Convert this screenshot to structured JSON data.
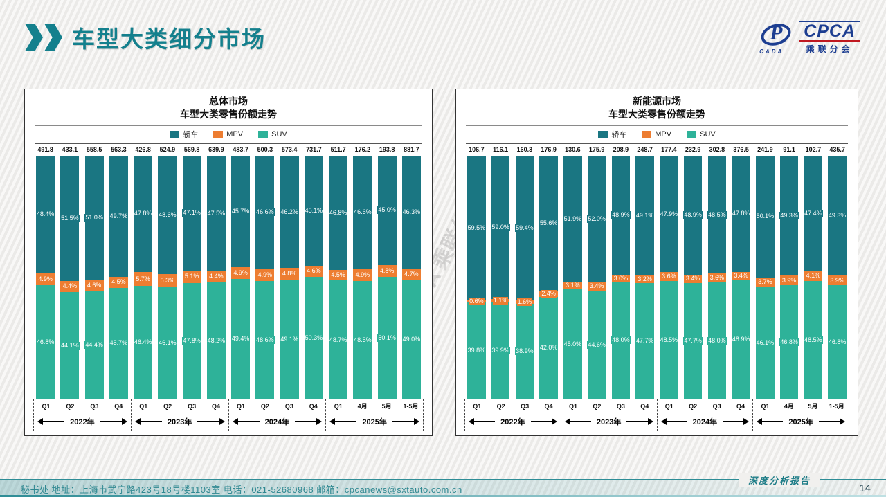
{
  "page": {
    "title": "车型大类细分市场",
    "page_number": "14",
    "report_label": "深度分析报告",
    "watermark": "CPCA 乘联分会",
    "footer_text": "秘书处   地址：上海市武宁路423号18号楼1103室  电话：021-52680968   邮箱：cpcanews@sxtauto.com.cn",
    "logo": {
      "brand": "CPCA",
      "sub": "乘联分会",
      "emblem": "CADA",
      "emblem_glyph": "P"
    }
  },
  "legend": [
    "轿车",
    "MPV",
    "SUV"
  ],
  "colors": {
    "sedan": "#1a7682",
    "mpv": "#ed7d31",
    "suv": "#2eb299",
    "accent": "#14808d"
  },
  "axis": {
    "quarters": [
      "Q1",
      "Q2",
      "Q3",
      "Q4",
      "Q1",
      "Q2",
      "Q3",
      "Q4",
      "Q1",
      "Q2",
      "Q3",
      "Q4",
      "Q1",
      "4月",
      "5月",
      "1-5月"
    ],
    "year_groups": [
      "2022年",
      "2023年",
      "2024年",
      "2025年"
    ]
  },
  "chart_data": [
    {
      "type": "bar",
      "stacked": true,
      "unit": "%",
      "ylim": [
        0,
        100
      ],
      "legend_position": "top",
      "title": "总体市场",
      "subtitle": "车型大类零售份额走势",
      "categories": [
        "Q1",
        "Q2",
        "Q3",
        "Q4",
        "Q1",
        "Q2",
        "Q3",
        "Q4",
        "Q1",
        "Q2",
        "Q3",
        "Q4",
        "Q1",
        "4月",
        "5月",
        "1-5月"
      ],
      "year_groups": [
        "2022年",
        "2023年",
        "2024年",
        "2025年"
      ],
      "totals": [
        491.8,
        433.1,
        558.5,
        563.3,
        426.8,
        524.9,
        569.8,
        639.9,
        483.7,
        500.3,
        573.4,
        731.7,
        511.7,
        176.2,
        193.8,
        881.7
      ],
      "series": [
        {
          "name": "轿车",
          "values": [
            48.4,
            51.5,
            51.0,
            49.7,
            47.8,
            48.6,
            47.1,
            47.5,
            45.7,
            46.6,
            46.2,
            45.1,
            46.8,
            46.6,
            45.0,
            46.3
          ]
        },
        {
          "name": "MPV",
          "values": [
            4.9,
            4.4,
            4.6,
            4.5,
            5.7,
            5.3,
            5.1,
            4.4,
            4.9,
            4.9,
            4.8,
            4.6,
            4.5,
            4.9,
            4.8,
            4.7
          ]
        },
        {
          "name": "SUV",
          "values": [
            46.8,
            44.1,
            44.4,
            45.7,
            46.4,
            46.1,
            47.8,
            48.2,
            49.4,
            48.6,
            49.1,
            50.3,
            48.7,
            48.5,
            50.1,
            49.0
          ]
        }
      ]
    },
    {
      "type": "bar",
      "stacked": true,
      "unit": "%",
      "ylim": [
        0,
        100
      ],
      "legend_position": "top",
      "title": "新能源市场",
      "subtitle": "车型大类零售份额走势",
      "categories": [
        "Q1",
        "Q2",
        "Q3",
        "Q4",
        "Q1",
        "Q2",
        "Q3",
        "Q4",
        "Q1",
        "Q2",
        "Q3",
        "Q4",
        "Q1",
        "4月",
        "5月",
        "1-5月"
      ],
      "year_groups": [
        "2022年",
        "2023年",
        "2024年",
        "2025年"
      ],
      "totals": [
        106.7,
        116.1,
        160.3,
        176.9,
        130.6,
        175.9,
        208.9,
        248.7,
        177.4,
        232.9,
        302.8,
        376.5,
        241.9,
        91.1,
        102.7,
        435.7
      ],
      "series": [
        {
          "name": "轿车",
          "values": [
            59.5,
            59.0,
            59.4,
            55.6,
            51.9,
            52.0,
            48.9,
            49.1,
            47.9,
            48.9,
            48.5,
            47.8,
            50.1,
            49.3,
            47.4,
            49.3
          ]
        },
        {
          "name": "MPV",
          "values": [
            0.6,
            1.1,
            1.6,
            2.4,
            3.1,
            3.4,
            3.0,
            3.2,
            3.6,
            3.4,
            3.6,
            3.4,
            3.7,
            3.9,
            4.1,
            3.9
          ]
        },
        {
          "name": "SUV",
          "values": [
            39.8,
            39.9,
            38.9,
            42.0,
            45.0,
            44.6,
            48.0,
            47.7,
            48.5,
            47.7,
            48.0,
            48.9,
            46.1,
            46.8,
            48.5,
            46.8
          ]
        }
      ]
    }
  ]
}
